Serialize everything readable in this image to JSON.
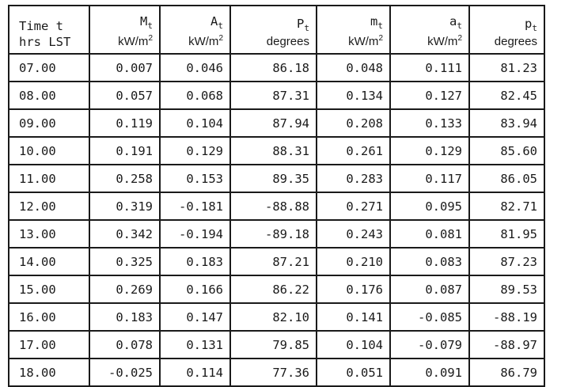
{
  "headers": [
    {
      "line1": "Time t",
      "line2": "hrs LST"
    },
    {
      "sym": "M",
      "sub": "t",
      "unit": "kW/m",
      "pow": "2"
    },
    {
      "sym": "A",
      "sub": "t",
      "unit": "kW/m",
      "pow": "2"
    },
    {
      "sym": "P",
      "sub": "t",
      "unit_text": "degrees"
    },
    {
      "sym": "m",
      "sub": "t",
      "unit": "kW/m",
      "pow": "2"
    },
    {
      "sym": "a",
      "sub": "t",
      "unit": "kW/m",
      "pow": "2"
    },
    {
      "sym": "p",
      "sub": "t",
      "unit_text": "degrees"
    }
  ],
  "rows": [
    [
      "07.00",
      "0.007",
      "0.046",
      "86.18",
      "0.048",
      "0.111",
      "81.23"
    ],
    [
      "08.00",
      "0.057",
      "0.068",
      "87.31",
      "0.134",
      "0.127",
      "82.45"
    ],
    [
      "09.00",
      "0.119",
      "0.104",
      "87.94",
      "0.208",
      "0.133",
      "83.94"
    ],
    [
      "10.00",
      "0.191",
      "0.129",
      "88.31",
      "0.261",
      "0.129",
      "85.60"
    ],
    [
      "11.00",
      "0.258",
      "0.153",
      "89.35",
      "0.283",
      "0.117",
      "86.05"
    ],
    [
      "12.00",
      "0.319",
      "-0.181",
      "-88.88",
      "0.271",
      "0.095",
      "82.71"
    ],
    [
      "13.00",
      "0.342",
      "-0.194",
      "-89.18",
      "0.243",
      "0.081",
      "81.95"
    ],
    [
      "14.00",
      "0.325",
      "0.183",
      "87.21",
      "0.210",
      "0.083",
      "87.23"
    ],
    [
      "15.00",
      "0.269",
      "0.166",
      "86.22",
      "0.176",
      "0.087",
      "89.53"
    ],
    [
      "16.00",
      "0.183",
      "0.147",
      "82.10",
      "0.141",
      "-0.085",
      "-88.19"
    ],
    [
      "17.00",
      "0.078",
      "0.131",
      "79.85",
      "0.104",
      "-0.079",
      "-88.97"
    ],
    [
      "18.00",
      "-0.025",
      "0.114",
      "77.36",
      "0.051",
      "0.091",
      "86.79"
    ]
  ]
}
